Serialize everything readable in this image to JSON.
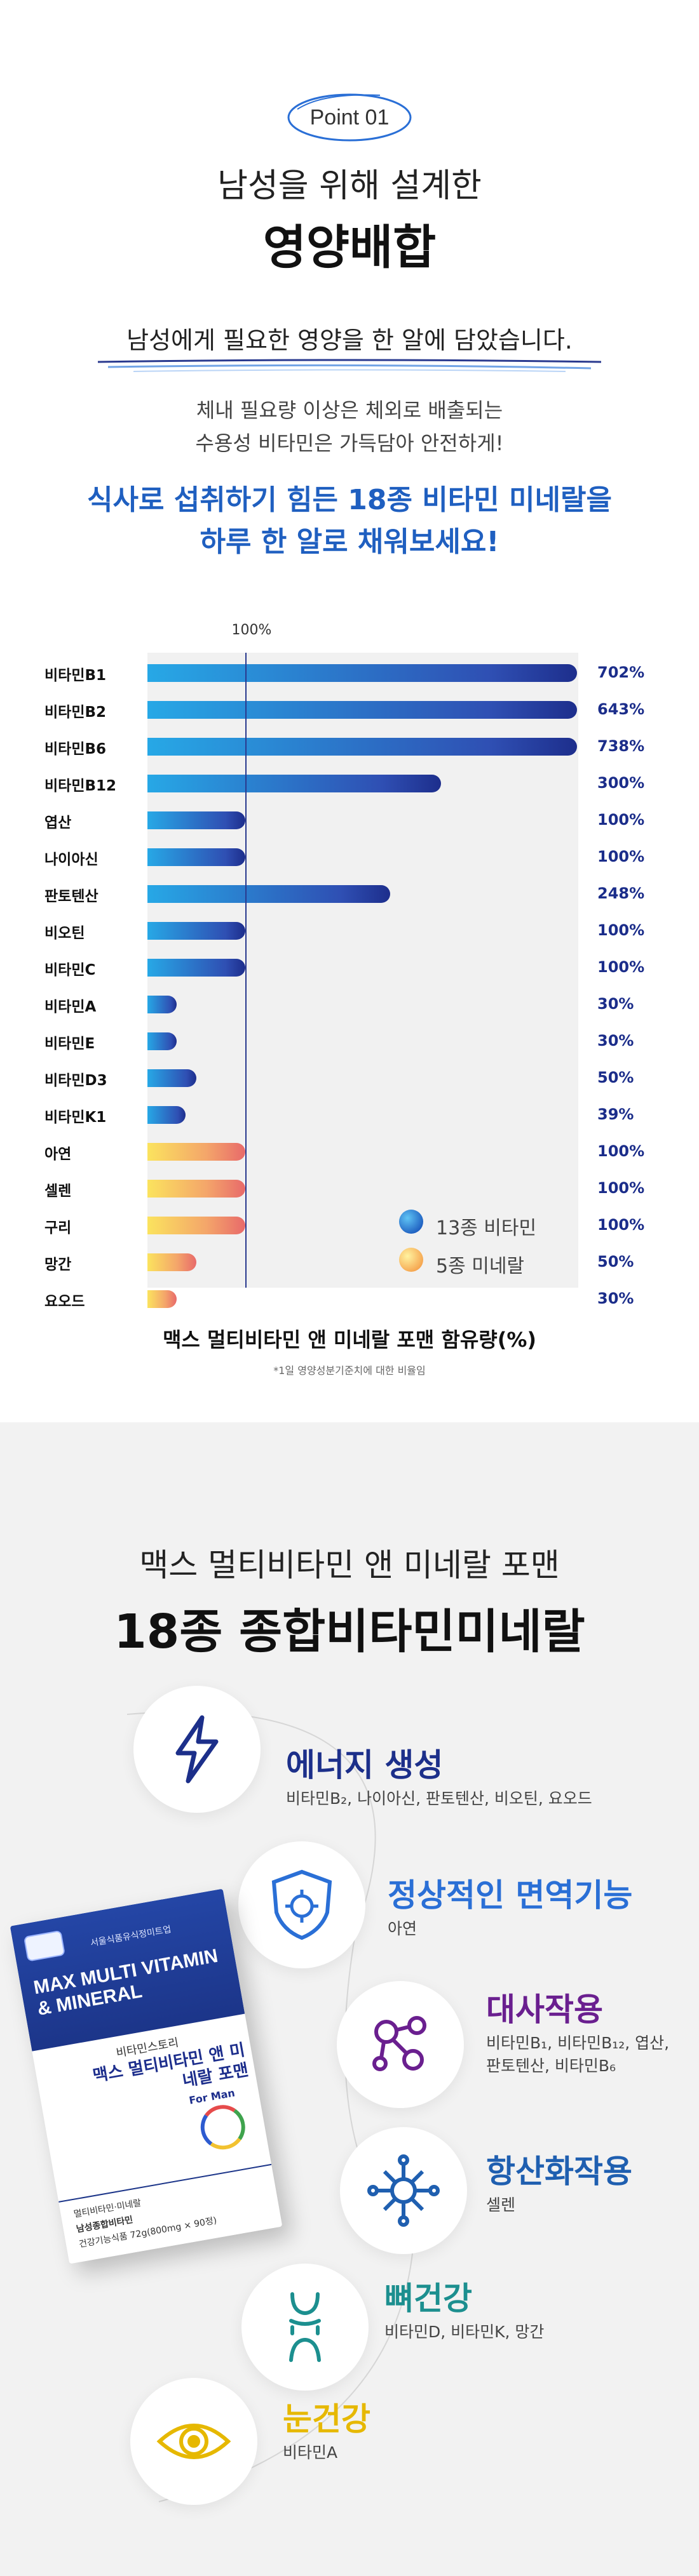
{
  "section1": {
    "badge": "Point 01",
    "heading_sub": "남성을 위해 설계한",
    "heading_main": "영양배합",
    "intro": "남성에게 필요한 영양을 한 알에 담았습니다.",
    "desc_line1": "체내 필요량 이상은 체외로 배출되는",
    "desc_line2": "수용성 비타민은 가득담아 안전하게!",
    "highlight_line1": "식사로 섭취하기 힘든 18종 비타민 미네랄을",
    "highlight_line2": "하루 한 알로 채워보세요!",
    "colors": {
      "accent": "#1f5fc0",
      "value_text": "#1b2d8a"
    }
  },
  "chart_data": {
    "type": "bar",
    "orientation": "horizontal",
    "reference_label": "100%",
    "reference_value": 100,
    "categories": [
      "비타민B1",
      "비타민B2",
      "비타민B6",
      "비타민B12",
      "엽산",
      "나이아신",
      "판토텐산",
      "비오틴",
      "비타민C",
      "비타민A",
      "비타민E",
      "비타민D3",
      "비타민K1",
      "아연",
      "셀렌",
      "구리",
      "망간",
      "요오드"
    ],
    "values": [
      702,
      643,
      738,
      300,
      100,
      100,
      248,
      100,
      100,
      30,
      30,
      50,
      39,
      100,
      100,
      100,
      50,
      30
    ],
    "value_labels": [
      "702%",
      "643%",
      "738%",
      "300%",
      "100%",
      "100%",
      "248%",
      "100%",
      "100%",
      "30%",
      "30%",
      "50%",
      "39%",
      "100%",
      "100%",
      "100%",
      "50%",
      "30%"
    ],
    "groups": [
      "vitamin",
      "vitamin",
      "vitamin",
      "vitamin",
      "vitamin",
      "vitamin",
      "vitamin",
      "vitamin",
      "vitamin",
      "vitamin",
      "vitamin",
      "vitamin",
      "vitamin",
      "mineral",
      "mineral",
      "mineral",
      "mineral",
      "mineral"
    ],
    "legend": [
      {
        "name": "13종 비타민",
        "group": "vitamin",
        "color": "#2f6fd0"
      },
      {
        "name": "5종 미네랄",
        "group": "mineral",
        "color": "#f6c04a"
      }
    ],
    "legend_position": "bottom-right",
    "title": "맥스 멀티비타민 앤 미네랄 포맨 함유량(%)",
    "note": "*1일 영양성분기준치에 대한 비율임",
    "xlim": [
      0,
      740
    ]
  },
  "section2": {
    "heading_sub": "맥스 멀티비타민 앤 미네랄 포맨",
    "heading_main": "18종 종합비타민미네랄",
    "features": [
      {
        "title": "에너지 생성",
        "desc": "비타민B₂, 나이아신, 판토텐산, 비오틴, 요오드",
        "color": "#1c2f8a",
        "icon": "lightning-icon"
      },
      {
        "title": "정상적인 면역기능",
        "desc": "아연",
        "color": "#2a6fd6",
        "icon": "immune-shield-icon"
      },
      {
        "title": "대사작용",
        "desc": "비타민B₁, 비타민B₁₂, 엽산, 판토텐산, 비타민B₆",
        "color": "#6a1f8f",
        "icon": "molecule-icon"
      },
      {
        "title": "항산화작용",
        "desc": "셀렌",
        "color": "#1f5fb0",
        "icon": "antioxidant-icon"
      },
      {
        "title": "뼈건강",
        "desc": "비타민D, 비타민K, 망간",
        "color": "#1c8f8f",
        "icon": "bone-icon"
      },
      {
        "title": "눈건강",
        "desc": "비타민A",
        "color": "#e6b800",
        "icon": "eye-icon"
      }
    ],
    "product": {
      "brand_small": "서울식품유식정미트업",
      "name_en": "MAX MULTI VITAMIN & MINERAL",
      "line_a": "비타민스토리",
      "name_ko": "맥스 멀티비타민 앤 미네랄 포맨",
      "for_man": "For Man",
      "foot1": "멀티비타민·미네랄",
      "foot2": "남성종합비타민",
      "foot3": "건강기능식품 72g(800mg × 90정)"
    }
  }
}
